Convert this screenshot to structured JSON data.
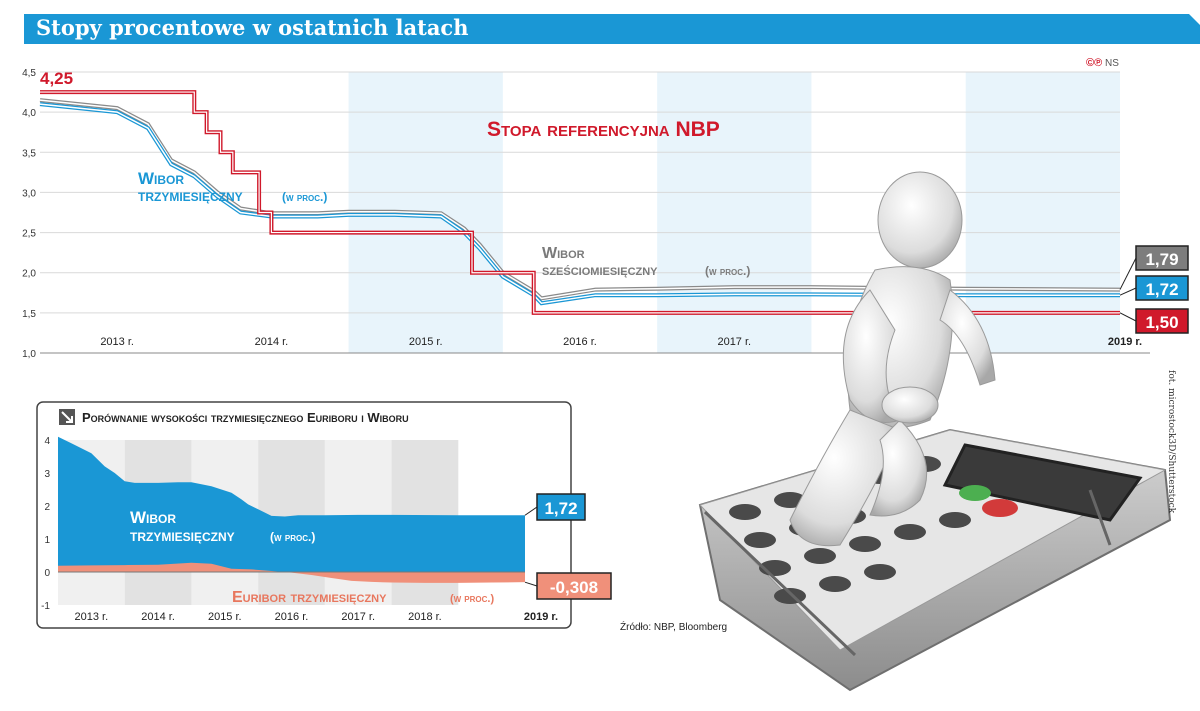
{
  "title": "Stopy procentowe w ostatnich latach",
  "credit": {
    "logo": "©℗",
    "author": "NS"
  },
  "photo_credit": "fot. microstock3D/Shutterstock",
  "source": "Źródło: NBP, Bloomberg",
  "colors": {
    "title_bar": "#1a97d5",
    "nbp": "#d0192b",
    "wibor3m": "#1a97d5",
    "wibor6m": "#8a8a8a",
    "euribor": "#f0907a",
    "band": "#e8f4fb"
  },
  "chart_data": [
    {
      "type": "line",
      "title": "Stopa referencyjna NBP",
      "ylim": [
        1.0,
        4.5
      ],
      "y_ticks": [
        "1,0",
        "1,5",
        "2,0",
        "2,5",
        "3,0",
        "3,5",
        "4,0",
        "4,5"
      ],
      "categories": [
        "2013 r.",
        "2014 r.",
        "2015 r.",
        "2016 r.",
        "2017 r.",
        "2018 r.",
        "2019 r."
      ],
      "start_label": "4,25",
      "series": [
        {
          "name": "Stopa referencyjna NBP",
          "x": [
            2012.0,
            2012.9,
            2013.0,
            2013.08,
            2013.17,
            2013.25,
            2013.42,
            2013.5,
            2014.8,
            2015.2,
            2019.0
          ],
          "values": [
            4.25,
            4.25,
            4.0,
            3.75,
            3.5,
            3.25,
            2.75,
            2.5,
            2.0,
            1.5,
            1.5
          ],
          "end_label": "1,50"
        },
        {
          "name_line1": "Wibor",
          "name_line2": "trzymiesięczny",
          "name_unit": "(w proc.)",
          "x": [
            2012.0,
            2012.5,
            2012.7,
            2012.85,
            2013.0,
            2013.15,
            2013.3,
            2013.5,
            2013.8,
            2014.0,
            2014.3,
            2014.6,
            2014.75,
            2014.85,
            2015.0,
            2015.2,
            2015.25,
            2015.6,
            2016.0,
            2016.5,
            2017.0,
            2018.0,
            2019.0
          ],
          "values": [
            4.1,
            4.0,
            3.8,
            3.35,
            3.2,
            2.95,
            2.75,
            2.7,
            2.7,
            2.72,
            2.72,
            2.7,
            2.5,
            2.3,
            1.95,
            1.72,
            1.62,
            1.72,
            1.72,
            1.73,
            1.73,
            1.72,
            1.72
          ],
          "end_label": "1,72"
        },
        {
          "name_line1": "Wibor",
          "name_line2": "sześciomiesięczny",
          "name_unit": "(w proc.)",
          "x": [
            2012.0,
            2012.5,
            2012.7,
            2012.85,
            2013.0,
            2013.15,
            2013.3,
            2013.5,
            2013.8,
            2014.0,
            2014.3,
            2014.6,
            2014.75,
            2014.85,
            2015.0,
            2015.2,
            2015.25,
            2015.6,
            2016.0,
            2016.5,
            2017.0,
            2018.0,
            2019.0
          ],
          "values": [
            4.15,
            4.05,
            3.85,
            3.4,
            3.25,
            3.0,
            2.8,
            2.74,
            2.74,
            2.76,
            2.76,
            2.74,
            2.55,
            2.35,
            2.0,
            1.77,
            1.68,
            1.79,
            1.8,
            1.82,
            1.82,
            1.8,
            1.79
          ],
          "end_label": "1,79"
        }
      ]
    },
    {
      "type": "area",
      "title": "Porównanie wysokości trzymiesięcznego Euriboru i Wiboru",
      "ylim": [
        -1,
        4
      ],
      "y_ticks": [
        "4",
        "3",
        "2",
        "1",
        "0",
        "-1"
      ],
      "categories": [
        "2013 r.",
        "2014 r.",
        "2015 r.",
        "2016 r.",
        "2017 r.",
        "2018 r.",
        "2019 r."
      ],
      "series": [
        {
          "name_line1": "Wibor",
          "name_line2": "trzymiesięczny",
          "name_unit": "(w proc.)",
          "x": [
            2012.0,
            2012.2,
            2012.5,
            2012.7,
            2012.85,
            2013.0,
            2013.15,
            2013.3,
            2013.5,
            2013.8,
            2014.0,
            2014.3,
            2014.6,
            2014.75,
            2014.85,
            2015.0,
            2015.2,
            2015.4,
            2015.6,
            2016.0,
            2016.5,
            2017.0,
            2018.0,
            2019.0
          ],
          "values": [
            4.1,
            3.9,
            3.6,
            3.2,
            3.0,
            2.75,
            2.7,
            2.7,
            2.7,
            2.72,
            2.72,
            2.6,
            2.4,
            2.2,
            2.05,
            1.9,
            1.7,
            1.68,
            1.72,
            1.72,
            1.73,
            1.73,
            1.72,
            1.72
          ],
          "end_label": "1,72"
        },
        {
          "name": "Euribor trzymiesięczny",
          "name_unit": "(w proc.)",
          "x": [
            2012.0,
            2012.5,
            2013.0,
            2013.5,
            2014.0,
            2014.3,
            2014.6,
            2014.9,
            2015.2,
            2015.5,
            2015.8,
            2016.1,
            2016.4,
            2016.7,
            2017.0,
            2017.5,
            2018.0,
            2018.5,
            2019.0
          ],
          "values": [
            0.19,
            0.2,
            0.21,
            0.22,
            0.28,
            0.25,
            0.1,
            0.08,
            0.03,
            -0.02,
            -0.09,
            -0.18,
            -0.27,
            -0.3,
            -0.32,
            -0.33,
            -0.33,
            -0.32,
            -0.308
          ],
          "end_label": "-0,308"
        }
      ]
    }
  ]
}
